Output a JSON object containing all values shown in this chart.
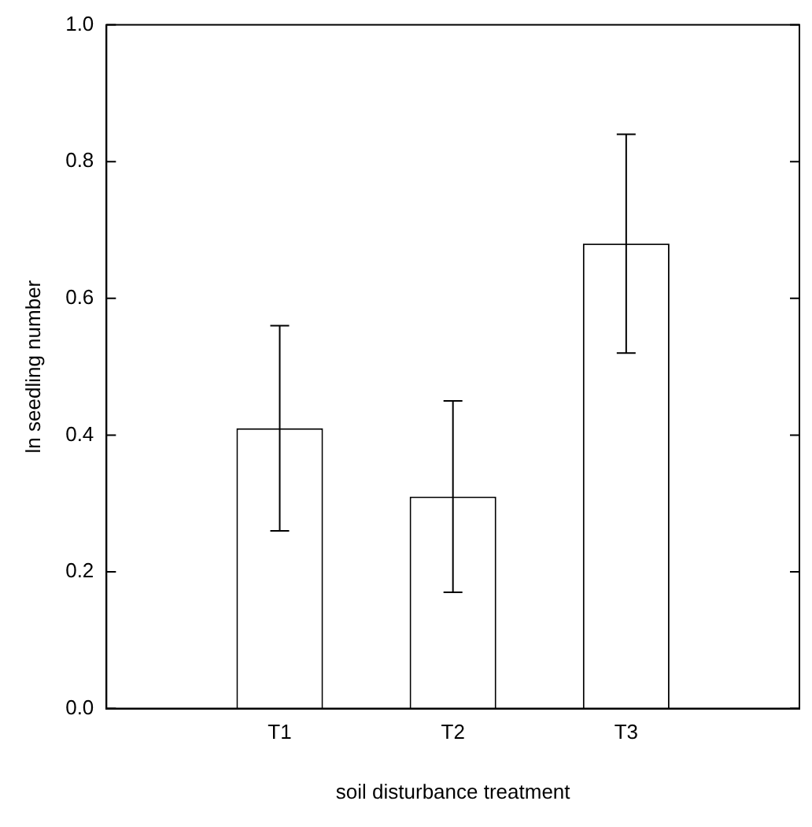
{
  "chart_data": {
    "type": "bar",
    "xlabel": "soil disturbance treatment",
    "ylabel": "ln seedling number",
    "categories": [
      "T1",
      "T2",
      "T3"
    ],
    "values": [
      0.41,
      0.31,
      0.68
    ],
    "errors": [
      0.15,
      0.14,
      0.16
    ],
    "color": "#ffffff",
    "ylim": [
      0,
      1
    ],
    "yticks": [
      {
        "value": 0,
        "label": "0.0"
      },
      0.2,
      0.4,
      0.6,
      0.8,
      {
        "value": 1,
        "label": "1.0"
      }
    ],
    "grid": false,
    "legend": false
  }
}
